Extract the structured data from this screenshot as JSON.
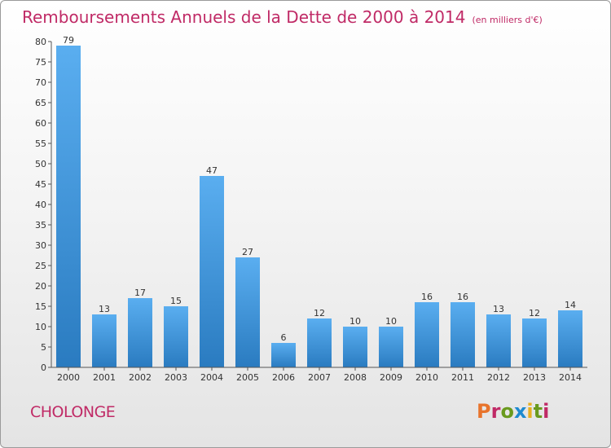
{
  "header": {
    "title": "Remboursements Annuels de la Dette de 2000 à 2014",
    "unit": "(en milliers d'€)"
  },
  "footer": {
    "commune": "CHOLONGE",
    "brand": "Proxiti"
  },
  "colors": {
    "title": "#c02a66",
    "bar_top": "#5aaef0",
    "bar_bottom": "#2a7bc0",
    "brand_letters": [
      "#e8742c",
      "#c02a66",
      "#6a9a1e",
      "#1e8ad0",
      "#e8b020",
      "#6a9a1e",
      "#c02a66"
    ]
  },
  "chart_data": {
    "type": "bar",
    "categories": [
      "2000",
      "2001",
      "2002",
      "2003",
      "2004",
      "2005",
      "2006",
      "2007",
      "2008",
      "2009",
      "2010",
      "2011",
      "2012",
      "2013",
      "2014"
    ],
    "values": [
      79,
      13,
      17,
      15,
      47,
      27,
      6,
      12,
      10,
      10,
      16,
      16,
      13,
      12,
      14
    ],
    "ylim": [
      0,
      80
    ],
    "yticks": [
      0,
      5,
      10,
      15,
      20,
      25,
      30,
      35,
      40,
      45,
      50,
      55,
      60,
      65,
      70,
      75,
      80
    ],
    "grid": false,
    "data_labels": true
  }
}
